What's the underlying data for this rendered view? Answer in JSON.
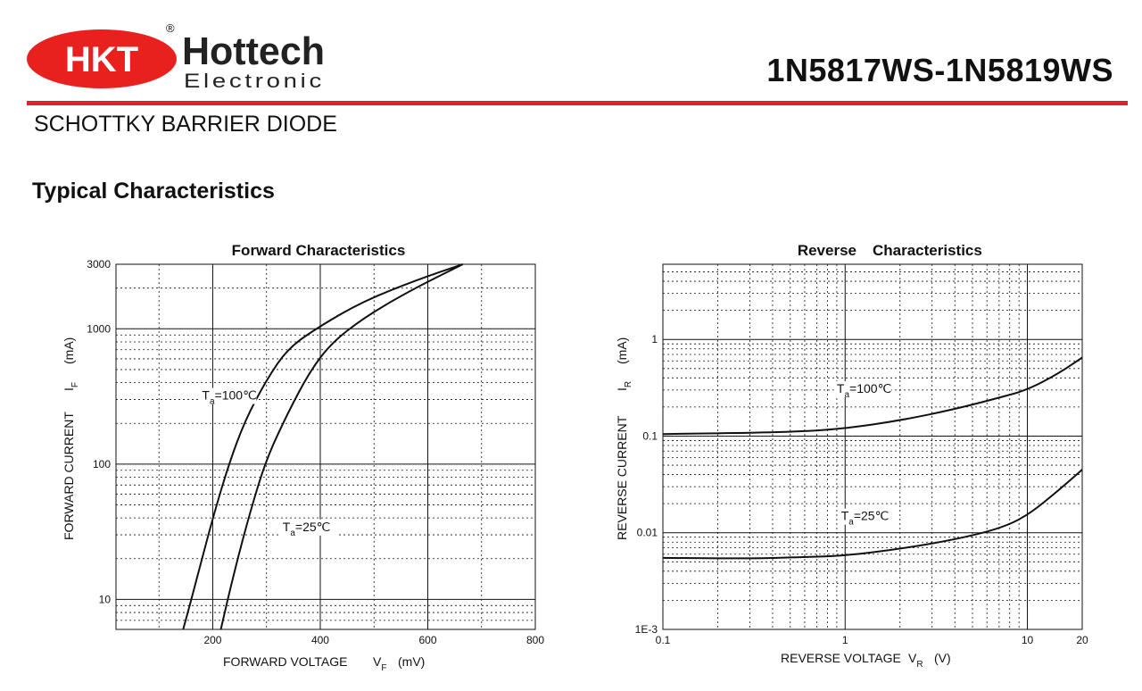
{
  "header": {
    "brand_badge": "HKT",
    "brand_name": "Hottech",
    "brand_sub": "Electronic",
    "registered_mark": "®",
    "part_number": "1N5817WS-1N5819WS"
  },
  "subtitle": "SCHOTTKY BARRIER DIODE",
  "section_title": "Typical Characteristics",
  "colors": {
    "accent_red": "#e8201e",
    "ink": "#111111"
  },
  "chart_data": [
    {
      "type": "line",
      "title": "Forward Characteristics",
      "xlabel": "FORWARD VOLTAGE",
      "xlabel_symbol": "V",
      "xlabel_sub": "F",
      "xlabel_unit": "(mV)",
      "ylabel": "FORWARD CURRENT",
      "ylabel_symbol": "I",
      "ylabel_sub": "F",
      "ylabel_unit": "(mA)",
      "x_scale": "linear",
      "y_scale": "log",
      "xlim": [
        20,
        800
      ],
      "ylim": [
        6,
        3000
      ],
      "x_ticks": [
        200,
        400,
        600,
        800
      ],
      "y_ticks": [
        10,
        100,
        1000,
        3000
      ],
      "x_tick_labels": [
        "200",
        "400",
        "600",
        "800"
      ],
      "y_tick_labels": [
        "10",
        "100",
        "1000",
        "3000"
      ],
      "grid": true,
      "series": [
        {
          "name": "Ta=100℃",
          "label_main": "T",
          "label_sub": "a",
          "label_rest": "=100℃",
          "label_at": [
            180,
            300
          ],
          "x": [
            145,
            170,
            200,
            230,
            260,
            300,
            340,
            400,
            480,
            580,
            665
          ],
          "y": [
            6,
            14,
            40,
            100,
            210,
            420,
            720,
            1050,
            1600,
            2300,
            3000
          ]
        },
        {
          "name": "Ta=25℃",
          "label_main": "T",
          "label_sub": "a",
          "label_rest": "=25℃",
          "label_at": [
            330,
            32
          ],
          "x": [
            215,
            240,
            270,
            300,
            340,
            380,
            420,
            480,
            560,
            665
          ],
          "y": [
            6,
            16,
            45,
            110,
            240,
            480,
            780,
            1200,
            1850,
            3000
          ]
        }
      ]
    },
    {
      "type": "line",
      "title": "Reverse Characteristics",
      "title_left": "Reverse",
      "title_right": "Characteristics",
      "xlabel": "REVERSE VOLTAGE",
      "xlabel_symbol": "V",
      "xlabel_sub": "R",
      "xlabel_unit": "(V)",
      "ylabel": "REVERSE CURRENT",
      "ylabel_symbol": "I",
      "ylabel_sub": "R",
      "ylabel_unit": "(mA)",
      "x_scale": "log",
      "y_scale": "log",
      "xlim": [
        0.1,
        20
      ],
      "ylim": [
        0.001,
        6
      ],
      "x_ticks": [
        0.1,
        1,
        10,
        20
      ],
      "y_ticks": [
        0.001,
        0.01,
        0.1,
        1
      ],
      "x_tick_labels": [
        "0.1",
        "1",
        "10",
        "20"
      ],
      "y_tick_labels": [
        "1E-3",
        "0.01",
        "0.1",
        "1"
      ],
      "grid": true,
      "series": [
        {
          "name": "Ta=100℃",
          "label_main": "T",
          "label_sub": "a",
          "label_rest": "=100℃",
          "label_at": [
            0.9,
            0.28
          ],
          "x": [
            0.1,
            0.3,
            0.6,
            1,
            2,
            4,
            7,
            10,
            15,
            20
          ],
          "y": [
            0.105,
            0.108,
            0.112,
            0.12,
            0.145,
            0.19,
            0.25,
            0.3,
            0.45,
            0.65
          ]
        },
        {
          "name": "Ta=25℃",
          "label_main": "T",
          "label_sub": "a",
          "label_rest": "=25℃",
          "label_at": [
            0.95,
            0.0135
          ],
          "x": [
            0.1,
            0.3,
            0.6,
            1,
            2,
            4,
            7,
            10,
            15,
            20
          ],
          "y": [
            0.0055,
            0.0054,
            0.0056,
            0.0058,
            0.0068,
            0.0085,
            0.011,
            0.015,
            0.028,
            0.045
          ]
        }
      ]
    }
  ]
}
